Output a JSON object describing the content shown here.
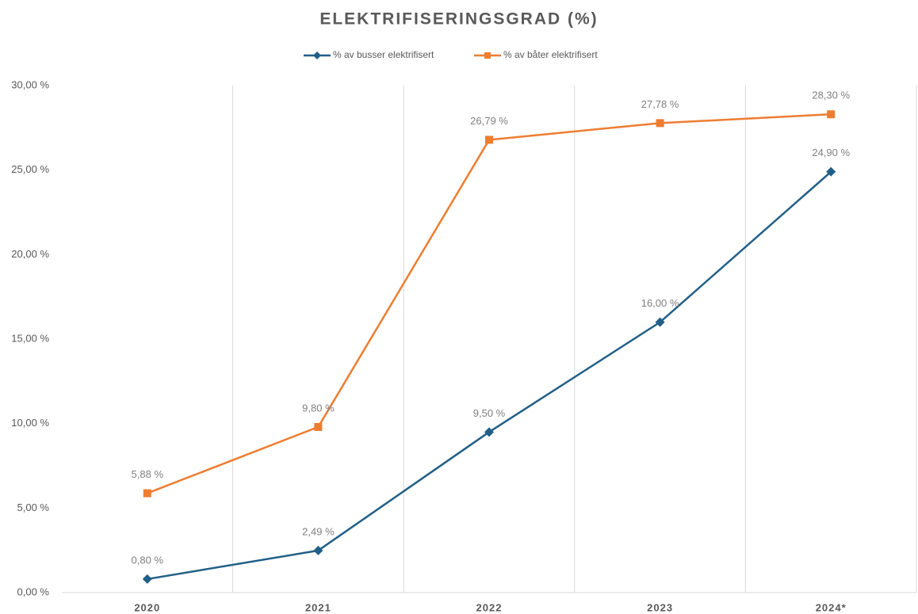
{
  "chart_data": {
    "type": "line",
    "title": "ELEKTRIFISERINGSGRAD (%)",
    "categories": [
      "2020",
      "2021",
      "2022",
      "2023",
      "2024*"
    ],
    "series": [
      {
        "name": "% av busser elektrifisert",
        "color": "#215f87",
        "marker": "diamond",
        "values": [
          0.8,
          2.49,
          9.5,
          16.0,
          24.9
        ],
        "value_labels": [
          "0,80 %",
          "2,49 %",
          "9,50 %",
          "16,00 %",
          "24,90 %"
        ]
      },
      {
        "name": "% av båter elektrifisert",
        "color": "#ed7d31",
        "marker": "square",
        "values": [
          5.88,
          9.8,
          26.79,
          27.78,
          28.3
        ],
        "value_labels": [
          "5,88 %",
          "9,80 %",
          "26,79 %",
          "27,78 %",
          "28,30 %"
        ]
      }
    ],
    "ylim": [
      0,
      30
    ],
    "yticks": [
      {
        "value": 0,
        "label": "0,00 %"
      },
      {
        "value": 5,
        "label": "5,00 %"
      },
      {
        "value": 10,
        "label": "10,00 %"
      },
      {
        "value": 15,
        "label": "15,00 %"
      },
      {
        "value": 20,
        "label": "20,00 %"
      },
      {
        "value": 25,
        "label": "25,00 %"
      },
      {
        "value": 30,
        "label": "30,00 %"
      }
    ],
    "legend": "top"
  }
}
